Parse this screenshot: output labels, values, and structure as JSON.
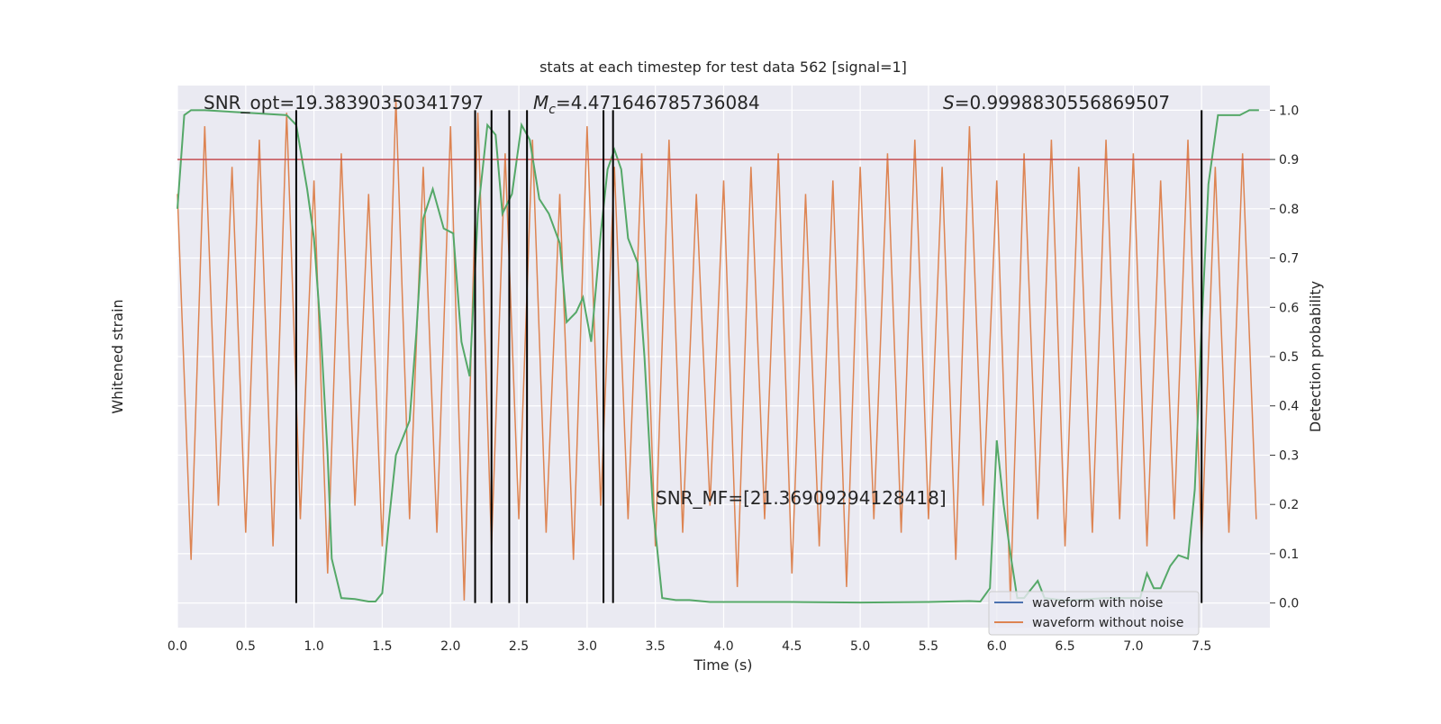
{
  "chart_data": {
    "type": "line",
    "title": "stats at each timestep for test data 562 [signal=1]",
    "xlabel": "Time (s)",
    "ylabel": "Whitened strain",
    "y2label": "Detection probability",
    "xlim": [
      0,
      8
    ],
    "ylim": [
      -1,
      1
    ],
    "y2lim": [
      -0.05,
      1.05
    ],
    "xticks": [
      {
        "value": 0,
        "label": "0.0"
      },
      {
        "value": 0.5,
        "label": "0.5"
      },
      {
        "value": 1,
        "label": "1.0"
      },
      {
        "value": 1.5,
        "label": "1.5"
      },
      {
        "value": 2,
        "label": "2.0"
      },
      {
        "value": 2.5,
        "label": "2.5"
      },
      {
        "value": 3,
        "label": "3.0"
      },
      {
        "value": 3.5,
        "label": "3.5"
      },
      {
        "value": 4,
        "label": "4.0"
      },
      {
        "value": 4.5,
        "label": "4.5"
      },
      {
        "value": 5,
        "label": "5.0"
      },
      {
        "value": 5.5,
        "label": "5.5"
      },
      {
        "value": 6,
        "label": "6.0"
      },
      {
        "value": 6.5,
        "label": "6.5"
      },
      {
        "value": 7,
        "label": "7.0"
      },
      {
        "value": 7.5,
        "label": "7.5"
      }
    ],
    "y2ticks": [
      {
        "value": 0,
        "label": "0.0"
      },
      {
        "value": 0.1,
        "label": "0.1"
      },
      {
        "value": 0.2,
        "label": "0.2"
      },
      {
        "value": 0.3,
        "label": "0.3"
      },
      {
        "value": 0.4,
        "label": "0.4"
      },
      {
        "value": 0.5,
        "label": "0.5"
      },
      {
        "value": 0.6,
        "label": "0.6"
      },
      {
        "value": 0.7,
        "label": "0.7"
      },
      {
        "value": 0.8,
        "label": "0.8"
      },
      {
        "value": 0.9,
        "label": "0.9"
      },
      {
        "value": 1,
        "label": "1.0"
      }
    ],
    "grid": true,
    "legend": [
      {
        "name": "waveform with noise",
        "color": "#4c72b0"
      },
      {
        "name": "waveform without noise",
        "color": "#dd8452"
      }
    ],
    "legend_loc": "lower right",
    "series": [
      {
        "color": "#dd8452",
        "axis": "y",
        "x": [
          0,
          0.1,
          0.2,
          0.3,
          0.4,
          0.5,
          0.6,
          0.7,
          0.8,
          0.9,
          1,
          1.1,
          1.2,
          1.3,
          1.4,
          1.5,
          1.6,
          1.7,
          1.8,
          1.9,
          2,
          2.1,
          2.2,
          2.3,
          2.4,
          2.5,
          2.6,
          2.7,
          2.8,
          2.9,
          3,
          3.1,
          3.2,
          3.3,
          3.4,
          3.5,
          3.6,
          3.7,
          3.8,
          3.9,
          4,
          4.1,
          4.2,
          4.3,
          4.4,
          4.5,
          4.6,
          4.7,
          4.8,
          4.9,
          5,
          5.1,
          5.2,
          5.3,
          5.4,
          5.5,
          5.6,
          5.7,
          5.8,
          5.9,
          6,
          6.1,
          6.2,
          6.3,
          6.4,
          6.5,
          6.6,
          6.7,
          6.8,
          6.9,
          7,
          7.1,
          7.2,
          7.3,
          7.4,
          7.5,
          7.6,
          7.7,
          7.8,
          7.9
        ],
        "values": [
          0.6,
          -0.75,
          0.85,
          -0.55,
          0.7,
          -0.65,
          0.8,
          -0.7,
          0.9,
          -0.6,
          0.65,
          -0.8,
          0.75,
          -0.55,
          0.6,
          -0.7,
          0.95,
          -0.6,
          0.7,
          -0.65,
          0.85,
          -0.9,
          0.9,
          -0.7,
          0.75,
          -0.6,
          0.8,
          -0.65,
          0.6,
          -0.75,
          0.85,
          -0.55,
          0.7,
          -0.6,
          0.75,
          -0.7,
          0.8,
          -0.65,
          0.6,
          -0.55,
          0.65,
          -0.85,
          0.7,
          -0.6,
          0.75,
          -0.8,
          0.6,
          -0.7,
          0.65,
          -0.85,
          0.7,
          -0.6,
          0.75,
          -0.65,
          0.8,
          -0.6,
          0.7,
          -0.75,
          0.85,
          -0.55,
          0.65,
          -0.9,
          0.75,
          -0.6,
          0.8,
          -0.7,
          0.7,
          -0.65,
          0.8,
          -0.6,
          0.75,
          -0.7,
          0.65,
          -0.6,
          0.8,
          -0.7,
          0.7,
          -0.65,
          0.75,
          -0.6
        ]
      },
      {
        "color": "#55a868",
        "axis": "y2",
        "x": [
          0,
          0.05,
          0.1,
          0.2,
          0.8,
          0.87,
          0.95,
          1,
          1.05,
          1.1,
          1.13,
          1.2,
          1.3,
          1.4,
          1.45,
          1.5,
          1.55,
          1.6,
          1.7,
          1.75,
          1.8,
          1.87,
          1.95,
          2.02,
          2.08,
          2.14,
          2.2,
          2.27,
          2.33,
          2.38,
          2.45,
          2.52,
          2.58,
          2.65,
          2.72,
          2.8,
          2.85,
          2.92,
          2.97,
          3.03,
          3.1,
          3.15,
          3.2,
          3.25,
          3.3,
          3.37,
          3.42,
          3.48,
          3.55,
          3.65,
          3.75,
          3.9,
          4.5,
          5,
          5.5,
          5.8,
          5.88,
          5.95,
          6,
          6.05,
          6.1,
          6.15,
          6.2,
          6.3,
          6.35,
          6.5,
          6.8,
          7.05,
          7.1,
          7.15,
          7.2,
          7.27,
          7.33,
          7.4,
          7.45,
          7.5,
          7.55,
          7.62,
          7.7,
          7.78,
          7.85,
          7.92
        ],
        "values": [
          0.8,
          0.99,
          1,
          1,
          0.99,
          0.97,
          0.84,
          0.74,
          0.55,
          0.3,
          0.09,
          0.01,
          0.008,
          0.003,
          0.003,
          0.02,
          0.17,
          0.3,
          0.37,
          0.55,
          0.78,
          0.84,
          0.76,
          0.75,
          0.53,
          0.46,
          0.79,
          0.97,
          0.95,
          0.79,
          0.83,
          0.97,
          0.94,
          0.82,
          0.79,
          0.73,
          0.57,
          0.59,
          0.62,
          0.53,
          0.75,
          0.88,
          0.92,
          0.88,
          0.74,
          0.69,
          0.5,
          0.2,
          0.01,
          0.006,
          0.006,
          0.002,
          0.002,
          0.001,
          0.002,
          0.004,
          0.003,
          0.03,
          0.33,
          0.2,
          0.1,
          0.01,
          0.01,
          0.045,
          0.01,
          0.005,
          0.01,
          0.01,
          0.06,
          0.03,
          0.03,
          0.075,
          0.097,
          0.09,
          0.23,
          0.56,
          0.85,
          0.99,
          0.99,
          0.99,
          1,
          1
        ]
      }
    ],
    "threshold": {
      "value": 0.9,
      "color": "#c44e52"
    },
    "vlines": [
      0.87,
      2.18,
      2.3,
      2.43,
      2.56,
      3.12,
      3.19,
      7.5
    ],
    "annotations": [
      {
        "text": "SNR_opt=19.38390350341797"
      },
      {
        "symbol": "M",
        "subscript": "c",
        "text": "=4.471646785736084"
      },
      {
        "symbol": "S",
        "text": "=0.9998830556869507"
      },
      {
        "text": "SNR_MF=[21.36909294128418]"
      }
    ]
  }
}
